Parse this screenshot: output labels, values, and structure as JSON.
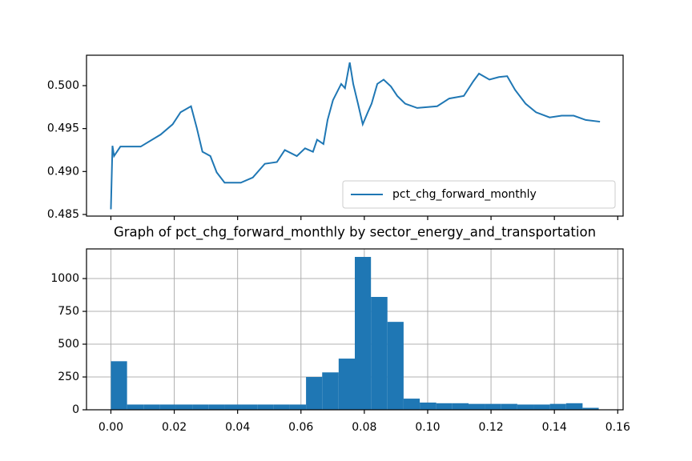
{
  "chart_data": [
    {
      "type": "line",
      "xlim": [
        -0.0077,
        0.1617
      ],
      "xticks": [
        0,
        0.02,
        0.04,
        0.06,
        0.08,
        0.1,
        0.12,
        0.14,
        0.16
      ],
      "ylim": [
        0.48481,
        0.50354
      ],
      "yticks": [
        0.485,
        {
          "value": 0.49,
          "label": "0.490"
        },
        0.495,
        {
          "value": 0.5,
          "label": "0.500"
        }
      ],
      "grid": false,
      "legend": "lower right",
      "series": [
        {
          "name": "pct_chg_forward_monthly",
          "color": "#1f77b4",
          "x": [
            0,
            0.0005,
            0.001,
            0.003,
            0.0094,
            0.0157,
            0.0195,
            0.022,
            0.0253,
            0.0271,
            0.0289,
            0.0314,
            0.0334,
            0.0359,
            0.041,
            0.0448,
            0.0486,
            0.0524,
            0.0549,
            0.0587,
            0.0613,
            0.0638,
            0.0651,
            0.0671,
            0.0684,
            0.0701,
            0.0727,
            0.0739,
            0.0754,
            0.0765,
            0.078,
            0.0795,
            0.0811,
            0.0823,
            0.0841,
            0.0861,
            0.0884,
            0.0904,
            0.0929,
            0.0967,
            0.103,
            0.1068,
            0.1114,
            0.1144,
            0.1162,
            0.1195,
            0.1225,
            0.1251,
            0.1276,
            0.1309,
            0.1342,
            0.1385,
            0.1423,
            0.1461,
            0.1499,
            0.1544
          ],
          "values": [
            0.4856,
            0.493,
            0.4918,
            0.4929,
            0.4929,
            0.4943,
            0.4955,
            0.4969,
            0.4976,
            0.4951,
            0.4923,
            0.4918,
            0.4899,
            0.4887,
            0.4887,
            0.4893,
            0.4909,
            0.4911,
            0.4925,
            0.4918,
            0.4927,
            0.4923,
            0.4937,
            0.4932,
            0.496,
            0.4983,
            0.5002,
            0.4997,
            0.5027,
            0.5002,
            0.4979,
            0.4955,
            0.4969,
            0.4979,
            0.5002,
            0.5007,
            0.4999,
            0.4988,
            0.4979,
            0.4974,
            0.4976,
            0.4985,
            0.4988,
            0.5005,
            0.5014,
            0.5007,
            0.501,
            0.5011,
            0.4995,
            0.4979,
            0.4969,
            0.4963,
            0.4965,
            0.4965,
            0.496,
            0.4958
          ]
        }
      ]
    },
    {
      "type": "histogram",
      "title": "Graph of pct_chg_forward_monthly by sector_energy_and_transportation",
      "color": "#1f77b4",
      "bins": [
        0,
        0.0051,
        0.0103,
        0.0154,
        0.0205,
        0.0257,
        0.0308,
        0.0359,
        0.0411,
        0.0462,
        0.0513,
        0.0565,
        0.0616,
        0.0667,
        0.0719,
        0.077,
        0.0821,
        0.0873,
        0.0924,
        0.0975,
        0.1027,
        0.1078,
        0.1129,
        0.1181,
        0.1232,
        0.1283,
        0.1335,
        0.1386,
        0.1437,
        0.1489,
        0.154
      ],
      "counts": [
        370,
        40,
        40,
        40,
        40,
        40,
        40,
        40,
        40,
        40,
        40,
        40,
        250,
        285,
        390,
        1165,
        860,
        670,
        85,
        55,
        50,
        50,
        45,
        45,
        45,
        40,
        40,
        45,
        50,
        15
      ],
      "xlim": [
        -0.0077,
        0.1617
      ],
      "xticks": [
        {
          "value": 0,
          "label": "0.00"
        },
        0.02,
        0.04,
        0.06,
        0.08,
        {
          "value": 0.1,
          "label": "0.10"
        },
        0.12,
        0.14,
        0.16
      ],
      "ylim": [
        0,
        1226
      ],
      "yticks": [
        0,
        250,
        500,
        750,
        1000
      ],
      "grid": true
    }
  ]
}
